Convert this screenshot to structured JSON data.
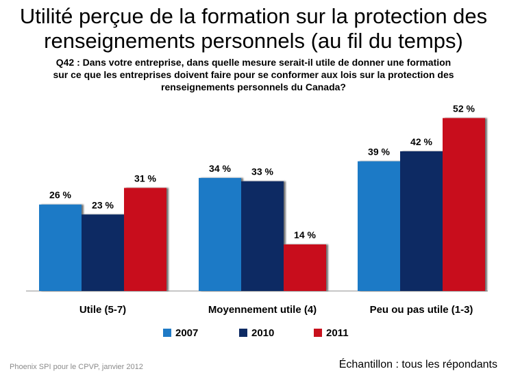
{
  "title": {
    "line1": "Utilité perçue de la formation sur la protection des",
    "line2": "renseignements personnels (au fil du temps)"
  },
  "question": {
    "line1": "Q42 : Dans votre entreprise, dans quelle mesure serait-il utile de donner une formation",
    "line2": "sur ce que les entreprises doivent faire pour se conformer aux lois sur la protection des",
    "line3": "renseignements personnels du Canada?"
  },
  "chart_data": {
    "type": "bar",
    "categories": [
      "Utile (5-7)",
      "Moyennement utile (4)",
      "Peu ou pas utile (1-3)"
    ],
    "series": [
      {
        "name": "2007",
        "values": [
          26,
          34,
          39
        ],
        "color": "#1f7ac6"
      },
      {
        "name": "2010",
        "values": [
          23,
          33,
          42
        ],
        "color": "#0d2a63"
      },
      {
        "name": "2011",
        "values": [
          31,
          14,
          52
        ],
        "color": "#c8101c"
      }
    ],
    "value_suffix": " %",
    "ylim": [
      0,
      56
    ],
    "legend_position": "bottom",
    "grid": false
  },
  "footer": {
    "source": "Phoenix SPI pour le CPVP, janvier 2012",
    "sample": "Échantillon : tous les répondants"
  }
}
